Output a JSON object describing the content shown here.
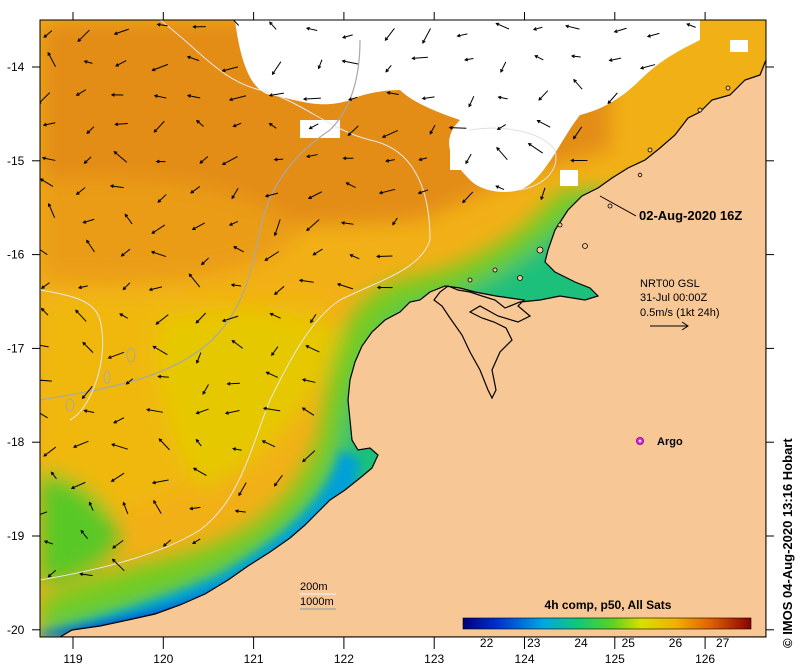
{
  "map": {
    "date_label": "02-Aug-2020 16Z",
    "current_info": [
      "NRT00 GSL",
      "31-Jul 00:00Z",
      "0.5m/s (1kt 24h)"
    ],
    "argo_label": "Argo",
    "depth_legend": [
      "200m",
      "1000m"
    ],
    "credit": "©  IMOS 04-Aug-2020 13:16 Hobart",
    "x_ticks": [
      "119",
      "120",
      "121",
      "122",
      "123",
      "124",
      "125",
      "126"
    ],
    "y_ticks": [
      "-14",
      "-15",
      "-16",
      "-17",
      "-18",
      "-19",
      "-20"
    ],
    "colorbar": {
      "title": "4h comp, p50, All Sats",
      "ticks": [
        "22",
        "23",
        "24",
        "25",
        "26",
        "27"
      ],
      "range": [
        21.5,
        27.6
      ]
    },
    "colors": {
      "land": "#f7c694",
      "no_data": "#ffffff",
      "warm": "#e98b15",
      "vector": "#000000",
      "argo": "#e030e0"
    }
  }
}
